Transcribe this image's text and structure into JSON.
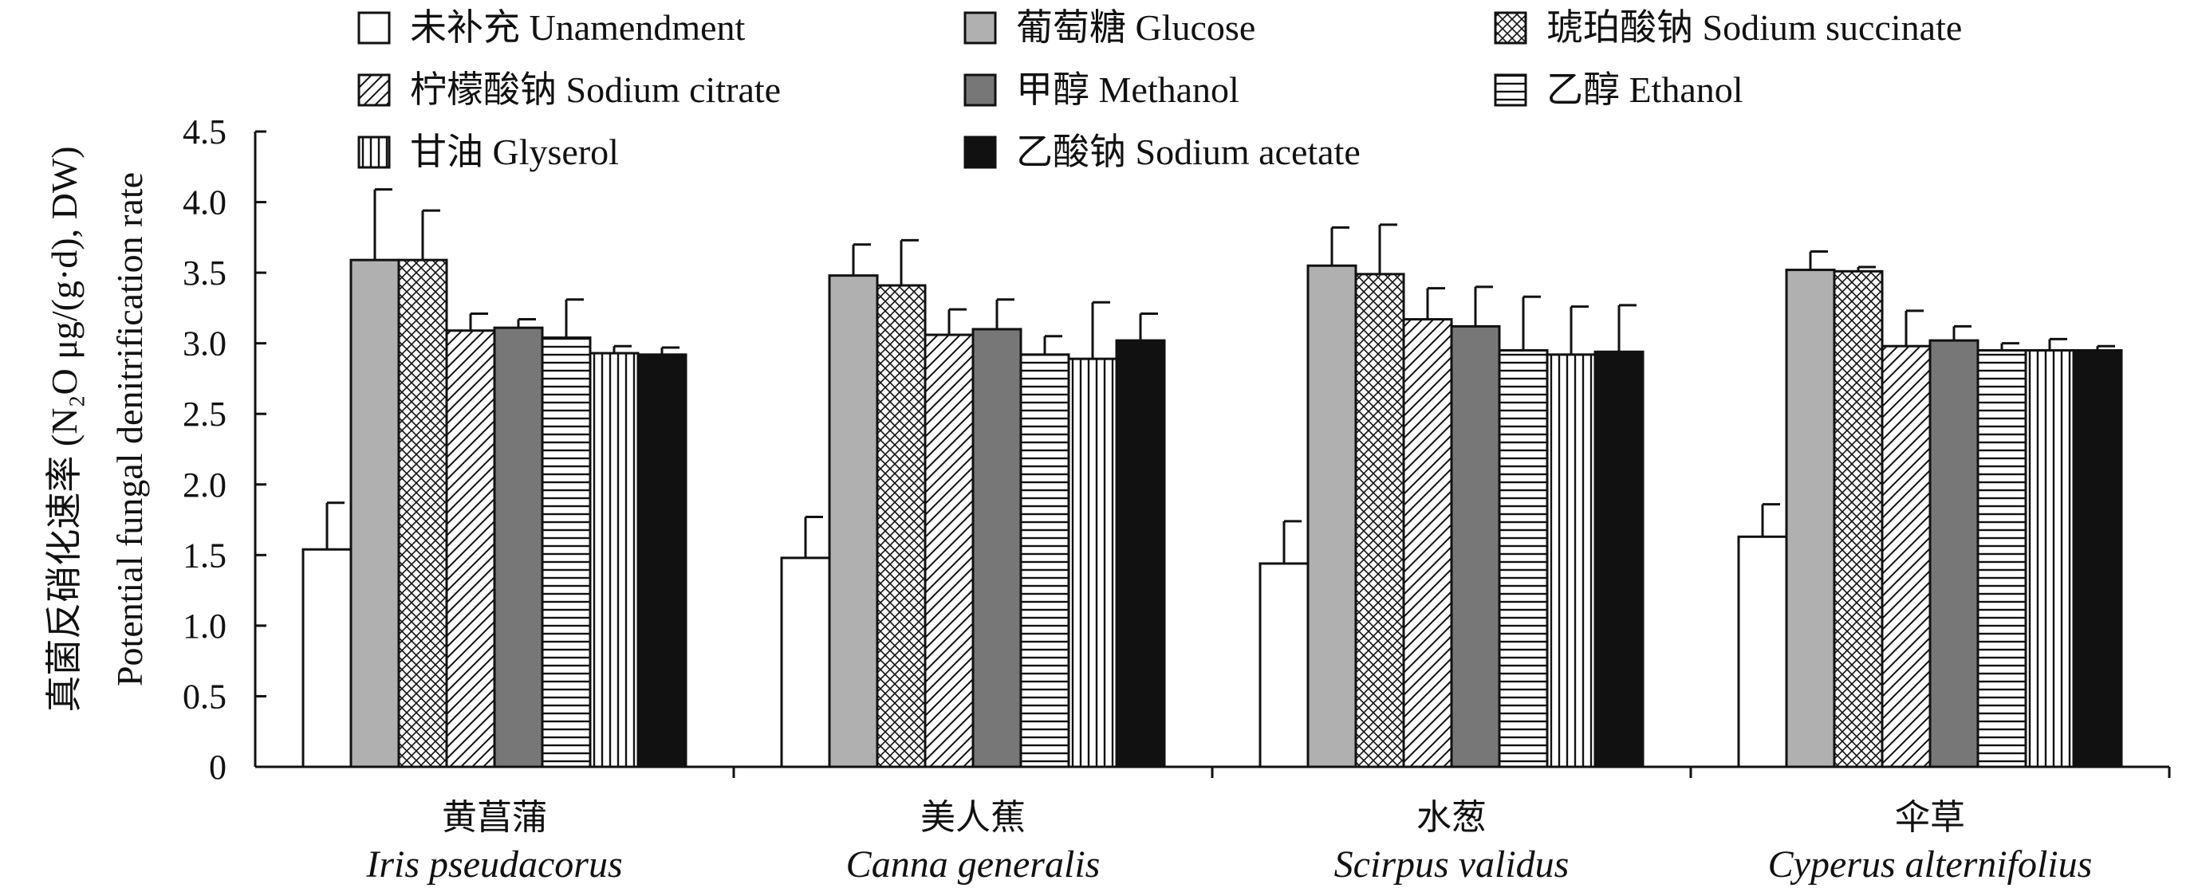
{
  "chart_data": {
    "type": "bar",
    "title": "",
    "ylabel_line1": "真菌反硝化速率 (N₂O μg/(g·d), DW)",
    "ylabel_line2": "Potential fungal denitrification rate",
    "xlabel": "",
    "ylim": [
      0,
      4.5
    ],
    "yticks": [
      0,
      0.5,
      1.0,
      1.5,
      2.0,
      2.5,
      3.0,
      3.5,
      4.0,
      4.5
    ],
    "ytick_labels": [
      "0",
      "0.5",
      "1.0",
      "1.5",
      "2.0",
      "2.5",
      "3.0",
      "3.5",
      "4.0",
      "4.5"
    ],
    "categories": [
      {
        "cn": "黄菖蒲",
        "latin": "Iris pseudacorus"
      },
      {
        "cn": "美人蕉",
        "latin": "Canna generalis"
      },
      {
        "cn": "水葱",
        "latin": "Scirpus validus"
      },
      {
        "cn": "伞草",
        "latin": "Cyperus alternifolius"
      }
    ],
    "series": [
      {
        "name": "未补充 Unamendment",
        "pattern": "white",
        "values": [
          1.54,
          1.48,
          1.44,
          1.63
        ],
        "errors": [
          0.33,
          0.29,
          0.3,
          0.23
        ]
      },
      {
        "name": "葡萄糖 Glucose",
        "pattern": "lightgray",
        "values": [
          3.59,
          3.48,
          3.55,
          3.52
        ],
        "errors": [
          0.5,
          0.22,
          0.27,
          0.13
        ]
      },
      {
        "name": "琥珀酸钠 Sodium succinate",
        "pattern": "crosshatch",
        "values": [
          3.59,
          3.41,
          3.49,
          3.51
        ],
        "errors": [
          0.35,
          0.32,
          0.35,
          0.03
        ]
      },
      {
        "name": "柠檬酸钠 Sodium citrate",
        "pattern": "diagonal",
        "values": [
          3.09,
          3.06,
          3.17,
          2.98
        ],
        "errors": [
          0.12,
          0.18,
          0.22,
          0.25
        ]
      },
      {
        "name": "甲醇 Methanol",
        "pattern": "darkgray",
        "values": [
          3.11,
          3.1,
          3.12,
          3.02
        ],
        "errors": [
          0.06,
          0.21,
          0.28,
          0.1
        ]
      },
      {
        "name": "乙醇 Ethanol",
        "pattern": "horizontal",
        "values": [
          3.04,
          2.92,
          2.95,
          2.95
        ],
        "errors": [
          0.27,
          0.13,
          0.38,
          0.05
        ]
      },
      {
        "name": "甘油 Glyserol",
        "pattern": "vertical",
        "values": [
          2.93,
          2.89,
          2.92,
          2.95
        ],
        "errors": [
          0.05,
          0.4,
          0.34,
          0.08
        ]
      },
      {
        "name": "乙酸钠 Sodium acetate",
        "pattern": "black",
        "values": [
          2.92,
          3.02,
          2.94,
          2.95
        ],
        "errors": [
          0.05,
          0.19,
          0.33,
          0.03
        ]
      }
    ],
    "legend_position": "top"
  },
  "colors": {
    "axis": "#111111",
    "lightgray": "#b0b0b0",
    "darkgray": "#777777",
    "black": "#111111",
    "white": "#ffffff"
  }
}
